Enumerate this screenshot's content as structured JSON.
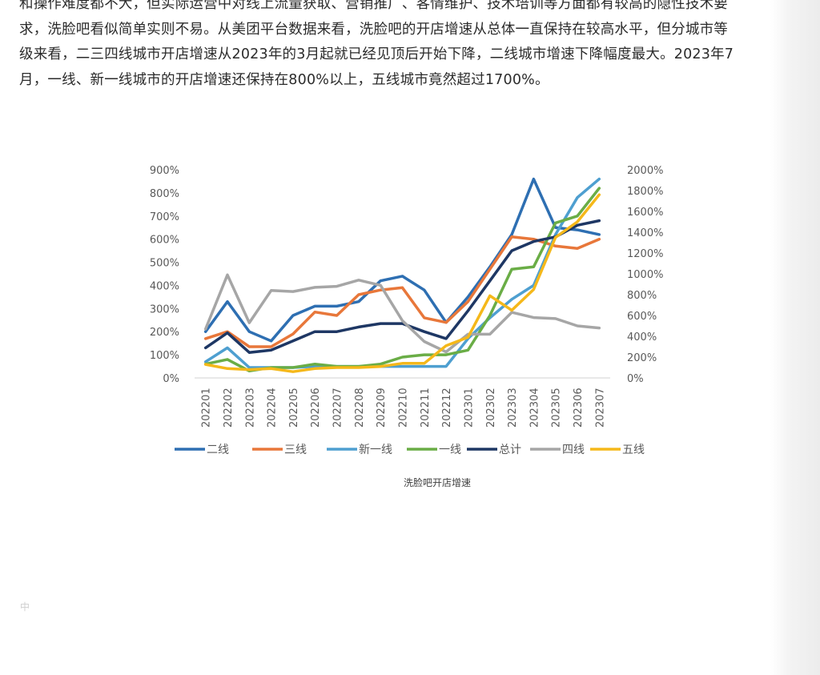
{
  "article": {
    "lines": [
      "和操作难度都不大，但实际运营中对线上流量获取、营销推广、客情维护、技术培训等方面都有较高的隐性技术要",
      "求，洗脸吧看似简单实则不易。从美团平台数据来看，洗脸吧的开店增速从总体一直保持在较高水平，但分城市等",
      "级来看，二三四线城市开店增速从2023年的3月起就已经见顶后开始下降，二线城市增速下降幅度最大。2023年7",
      "月，一线、新一线城市的开店增速还保持在800%以上，五线城市竟然超过1700%。"
    ]
  },
  "stray_char": "中",
  "chart_data": {
    "type": "line",
    "title": "洗脸吧开店增速",
    "categories": [
      "202201",
      "202202",
      "202203",
      "202204",
      "202205",
      "202206",
      "202207",
      "202208",
      "202209",
      "202210",
      "202211",
      "202212",
      "202301",
      "202302",
      "202303",
      "202304",
      "202305",
      "202306",
      "202307"
    ],
    "left_axis": {
      "ylim": [
        0,
        900
      ],
      "ticks": [
        0,
        100,
        200,
        300,
        400,
        500,
        600,
        700,
        800,
        900
      ],
      "tick_labels": [
        "0%",
        "100%",
        "200%",
        "300%",
        "400%",
        "500%",
        "600%",
        "700%",
        "800%",
        "900%"
      ]
    },
    "right_axis": {
      "ylim": [
        0,
        2000
      ],
      "ticks": [
        0,
        200,
        400,
        600,
        800,
        1000,
        1200,
        1400,
        1600,
        1800,
        2000
      ],
      "tick_labels": [
        "0%",
        "200%",
        "400%",
        "600%",
        "800%",
        "1000%",
        "1200%",
        "1400%",
        "1600%",
        "1800%",
        "2000%"
      ]
    },
    "series": [
      {
        "name": "二线",
        "color": "#2e6fb2",
        "axis": "left",
        "values": [
          200,
          330,
          200,
          160,
          270,
          310,
          310,
          330,
          420,
          440,
          380,
          240,
          350,
          480,
          620,
          860,
          650,
          640,
          620
        ]
      },
      {
        "name": "三线",
        "color": "#e8773a",
        "axis": "left",
        "values": [
          170,
          200,
          135,
          135,
          190,
          285,
          270,
          360,
          380,
          390,
          260,
          240,
          330,
          470,
          610,
          600,
          570,
          560,
          600
        ]
      },
      {
        "name": "新一线",
        "color": "#4e9fd0",
        "axis": "left",
        "values": [
          70,
          130,
          45,
          45,
          45,
          50,
          50,
          50,
          50,
          50,
          50,
          50,
          170,
          260,
          340,
          400,
          620,
          780,
          860
        ]
      },
      {
        "name": "一线",
        "color": "#6aad46",
        "axis": "left",
        "values": [
          60,
          80,
          30,
          45,
          45,
          60,
          50,
          50,
          60,
          90,
          100,
          100,
          120,
          270,
          470,
          480,
          670,
          700,
          820
        ]
      },
      {
        "name": "总计",
        "color": "#1e3764",
        "axis": "left",
        "values": [
          130,
          195,
          110,
          120,
          160,
          200,
          200,
          220,
          235,
          235,
          200,
          170,
          290,
          420,
          550,
          590,
          610,
          660,
          680
        ]
      },
      {
        "name": "四线",
        "color": "#a6a6a6",
        "axis": "right",
        "values": [
          470,
          990,
          530,
          840,
          830,
          870,
          880,
          940,
          890,
          550,
          350,
          250,
          420,
          420,
          630,
          580,
          570,
          500,
          480
        ]
      },
      {
        "name": "五线",
        "color": "#f5b81a",
        "axis": "right",
        "values": [
          130,
          90,
          80,
          90,
          60,
          90,
          100,
          100,
          110,
          140,
          140,
          310,
          390,
          790,
          650,
          850,
          1350,
          1500,
          1760
        ]
      }
    ]
  }
}
